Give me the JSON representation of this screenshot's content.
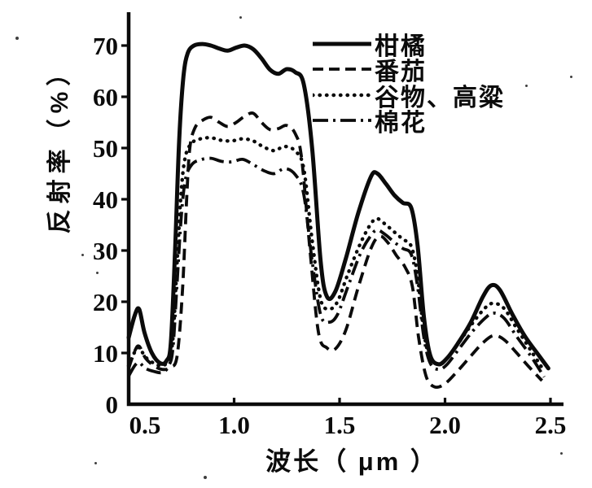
{
  "figure": {
    "y_axis_title": "反射率（%）",
    "x_axis_title": "波长（ μm ）"
  },
  "legend": [
    {
      "key": "citrus",
      "label": "柑橘",
      "style": "solid"
    },
    {
      "key": "tomato",
      "label": "番茄",
      "style": "dashed"
    },
    {
      "key": "grain-sorghum",
      "label": "谷物、高粱",
      "style": "dotted"
    },
    {
      "key": "cotton",
      "label": "棉花",
      "style": "dashdot"
    }
  ],
  "chart_data": {
    "type": "line",
    "title": "",
    "xlabel": "波长（μm）",
    "ylabel": "反射率（%）",
    "xlim": [
      0.5,
      2.5
    ],
    "ylim": [
      0,
      76.5
    ],
    "x_tick_values": [
      0.5,
      1.0,
      1.5,
      2.0,
      2.5
    ],
    "x_tick_labels": [
      "0.5",
      "1.0",
      "1.5",
      "2.0",
      "2.5"
    ],
    "y_tick_values": [
      0,
      10,
      20,
      30,
      40,
      50,
      60,
      70
    ],
    "y_tick_labels": [
      "0",
      "10",
      "20",
      "30",
      "40",
      "50",
      "60",
      "70"
    ],
    "grid": false,
    "legend_position": "top-right-inside",
    "ink_color": "#0b0b0b",
    "paper_color": "#ffffff",
    "series": [
      {
        "name": "柑橘",
        "key": "citrus",
        "line_style": "solid",
        "color": "#0b0b0b",
        "points": [
          [
            0.5,
            13
          ],
          [
            0.53,
            17.5
          ],
          [
            0.55,
            18.5
          ],
          [
            0.575,
            14
          ],
          [
            0.61,
            10
          ],
          [
            0.65,
            8
          ],
          [
            0.68,
            8.5
          ],
          [
            0.7,
            12
          ],
          [
            0.72,
            30
          ],
          [
            0.74,
            52
          ],
          [
            0.76,
            64
          ],
          [
            0.78,
            68.5
          ],
          [
            0.81,
            70
          ],
          [
            0.85,
            70.3
          ],
          [
            0.89,
            70
          ],
          [
            0.93,
            69.4
          ],
          [
            0.97,
            69
          ],
          [
            1.01,
            69.6
          ],
          [
            1.05,
            70
          ],
          [
            1.09,
            69.3
          ],
          [
            1.13,
            67.5
          ],
          [
            1.17,
            65.3
          ],
          [
            1.21,
            64.5
          ],
          [
            1.25,
            65.4
          ],
          [
            1.29,
            64.8
          ],
          [
            1.33,
            62.5
          ],
          [
            1.37,
            50
          ],
          [
            1.41,
            28
          ],
          [
            1.44,
            21
          ],
          [
            1.48,
            22
          ],
          [
            1.53,
            28.5
          ],
          [
            1.59,
            37.5
          ],
          [
            1.65,
            44.5
          ],
          [
            1.68,
            45
          ],
          [
            1.72,
            43
          ],
          [
            1.76,
            40.8
          ],
          [
            1.8,
            39.3
          ],
          [
            1.84,
            38.3
          ],
          [
            1.87,
            31
          ],
          [
            1.9,
            17
          ],
          [
            1.93,
            9.5
          ],
          [
            1.97,
            7.8
          ],
          [
            2.01,
            9
          ],
          [
            2.06,
            11.8
          ],
          [
            2.12,
            15.8
          ],
          [
            2.18,
            21
          ],
          [
            2.22,
            23.2
          ],
          [
            2.26,
            22.3
          ],
          [
            2.32,
            17.5
          ],
          [
            2.38,
            13.2
          ],
          [
            2.44,
            9.8
          ],
          [
            2.49,
            7
          ]
        ]
      },
      {
        "name": "番茄",
        "key": "tomato",
        "line_style": "dashed",
        "color": "#0b0b0b",
        "points": [
          [
            0.5,
            7
          ],
          [
            0.53,
            10.5
          ],
          [
            0.55,
            11.3
          ],
          [
            0.58,
            9
          ],
          [
            0.62,
            7.5
          ],
          [
            0.66,
            6.8
          ],
          [
            0.7,
            7.2
          ],
          [
            0.73,
            9.5
          ],
          [
            0.755,
            22
          ],
          [
            0.775,
            40
          ],
          [
            0.79,
            50
          ],
          [
            0.815,
            54
          ],
          [
            0.85,
            55.4
          ],
          [
            0.89,
            56
          ],
          [
            0.93,
            55
          ],
          [
            0.97,
            54.2
          ],
          [
            1.01,
            55
          ],
          [
            1.05,
            56.2
          ],
          [
            1.09,
            56.8
          ],
          [
            1.13,
            55
          ],
          [
            1.17,
            53.6
          ],
          [
            1.21,
            53.8
          ],
          [
            1.25,
            54.4
          ],
          [
            1.29,
            52.8
          ],
          [
            1.32,
            48
          ],
          [
            1.36,
            30
          ],
          [
            1.4,
            14
          ],
          [
            1.44,
            11
          ],
          [
            1.48,
            10.8
          ],
          [
            1.53,
            14.5
          ],
          [
            1.59,
            23
          ],
          [
            1.65,
            30.5
          ],
          [
            1.69,
            32.8
          ],
          [
            1.73,
            31.5
          ],
          [
            1.77,
            29
          ],
          [
            1.81,
            26.8
          ],
          [
            1.845,
            23
          ],
          [
            1.875,
            13
          ],
          [
            1.91,
            5.5
          ],
          [
            1.95,
            3.4
          ],
          [
            2.0,
            4
          ],
          [
            2.06,
            6.5
          ],
          [
            2.12,
            9.3
          ],
          [
            2.18,
            12
          ],
          [
            2.23,
            13.4
          ],
          [
            2.28,
            12.6
          ],
          [
            2.34,
            10
          ],
          [
            2.4,
            7.2
          ],
          [
            2.46,
            4.6
          ]
        ]
      },
      {
        "name": "谷物、高粱",
        "key": "grain-sorghum",
        "line_style": "dotted",
        "color": "#0b0b0b",
        "points": [
          [
            0.5,
            7.5
          ],
          [
            0.53,
            10.3
          ],
          [
            0.55,
            11
          ],
          [
            0.58,
            9.2
          ],
          [
            0.62,
            8
          ],
          [
            0.66,
            7.5
          ],
          [
            0.69,
            8.8
          ],
          [
            0.71,
            13
          ],
          [
            0.73,
            28
          ],
          [
            0.75,
            42
          ],
          [
            0.77,
            48.5
          ],
          [
            0.8,
            51
          ],
          [
            0.84,
            51.8
          ],
          [
            0.89,
            52
          ],
          [
            0.94,
            51.5
          ],
          [
            0.99,
            51.4
          ],
          [
            1.04,
            51.8
          ],
          [
            1.09,
            51.4
          ],
          [
            1.14,
            50.2
          ],
          [
            1.19,
            49.5
          ],
          [
            1.24,
            50.3
          ],
          [
            1.29,
            49.4
          ],
          [
            1.33,
            46
          ],
          [
            1.37,
            32
          ],
          [
            1.41,
            20.5
          ],
          [
            1.45,
            18.6
          ],
          [
            1.49,
            20
          ],
          [
            1.54,
            25.5
          ],
          [
            1.6,
            31.5
          ],
          [
            1.65,
            35.3
          ],
          [
            1.68,
            36.2
          ],
          [
            1.72,
            35
          ],
          [
            1.76,
            33.6
          ],
          [
            1.8,
            32.2
          ],
          [
            1.84,
            30.8
          ],
          [
            1.87,
            25
          ],
          [
            1.9,
            14
          ],
          [
            1.93,
            9
          ],
          [
            1.97,
            7.8
          ],
          [
            2.01,
            9
          ],
          [
            2.07,
            12.3
          ],
          [
            2.13,
            15.8
          ],
          [
            2.19,
            18.8
          ],
          [
            2.23,
            19.7
          ],
          [
            2.28,
            18.7
          ],
          [
            2.34,
            14.8
          ],
          [
            2.41,
            10.3
          ],
          [
            2.47,
            6.5
          ]
        ]
      },
      {
        "name": "棉花",
        "key": "cotton",
        "line_style": "dashdot",
        "color": "#0b0b0b",
        "points": [
          [
            0.5,
            5.5
          ],
          [
            0.53,
            7.6
          ],
          [
            0.55,
            8.1
          ],
          [
            0.58,
            7
          ],
          [
            0.62,
            6.4
          ],
          [
            0.66,
            6.2
          ],
          [
            0.69,
            7.5
          ],
          [
            0.71,
            11
          ],
          [
            0.73,
            24
          ],
          [
            0.75,
            37
          ],
          [
            0.77,
            44
          ],
          [
            0.8,
            46.8
          ],
          [
            0.84,
            47.7
          ],
          [
            0.89,
            48
          ],
          [
            0.94,
            47.4
          ],
          [
            0.99,
            47.3
          ],
          [
            1.04,
            47.8
          ],
          [
            1.09,
            46.8
          ],
          [
            1.14,
            45.6
          ],
          [
            1.19,
            45
          ],
          [
            1.24,
            46
          ],
          [
            1.29,
            44.8
          ],
          [
            1.33,
            41
          ],
          [
            1.37,
            28
          ],
          [
            1.41,
            17.5
          ],
          [
            1.45,
            16
          ],
          [
            1.49,
            17.5
          ],
          [
            1.54,
            23
          ],
          [
            1.6,
            29.5
          ],
          [
            1.65,
            33
          ],
          [
            1.68,
            34
          ],
          [
            1.72,
            33
          ],
          [
            1.76,
            31.6
          ],
          [
            1.8,
            30.4
          ],
          [
            1.84,
            29.2
          ],
          [
            1.87,
            23
          ],
          [
            1.9,
            13
          ],
          [
            1.93,
            8
          ],
          [
            1.97,
            6.8
          ],
          [
            2.01,
            7.8
          ],
          [
            2.07,
            11
          ],
          [
            2.13,
            14.2
          ],
          [
            2.19,
            16.8
          ],
          [
            2.23,
            17.8
          ],
          [
            2.28,
            16.8
          ],
          [
            2.34,
            13.2
          ],
          [
            2.41,
            9.2
          ],
          [
            2.47,
            5.3
          ]
        ]
      }
    ]
  }
}
